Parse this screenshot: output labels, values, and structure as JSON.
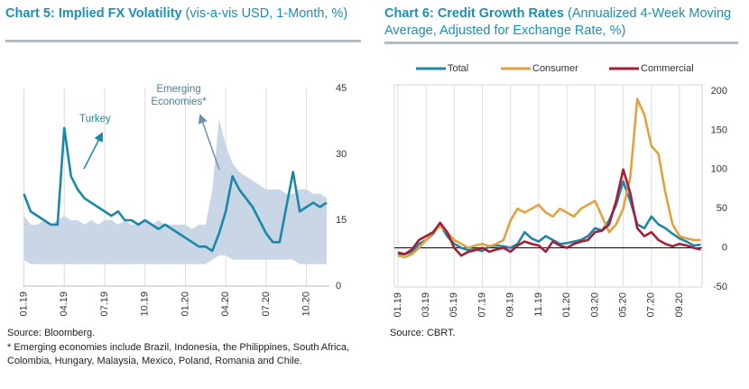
{
  "chart_data": [
    {
      "type": "line",
      "title": "Chart 5: Implied FX Volatility",
      "subtitle": "(vis-a-vis USD, 1-Month, %)",
      "source": "Source: Bloomberg.",
      "note": "* Emerging economies include Brazil, Indonesia, the Philippines, South Africa, Colombia, Hungary, Malaysia, Mexico, Poland, Romania and Chile.",
      "x": [
        0,
        0.5,
        1,
        1.5,
        2,
        2.5,
        3,
        3.5,
        4,
        4.5,
        5,
        5.5,
        6,
        6.5,
        7,
        7.5,
        8,
        8.5,
        9,
        9.5,
        10,
        10.5,
        11,
        11.5,
        12,
        12.5,
        13,
        13.5,
        14,
        14.5,
        15,
        15.5,
        16,
        16.5,
        17,
        17.5,
        18,
        18.5,
        19,
        19.5,
        20,
        20.5,
        21,
        21.5,
        22,
        22.5
      ],
      "series": [
        {
          "name": "Turkey",
          "color": "#1a88a6",
          "values": [
            21,
            17,
            16,
            15,
            14,
            14,
            36,
            25,
            22,
            20,
            19,
            18,
            17,
            16,
            17,
            15,
            15,
            14,
            15,
            14,
            13,
            14,
            13,
            12,
            11,
            10,
            9,
            9,
            8,
            12,
            17,
            25,
            22,
            20,
            18,
            15,
            12,
            10,
            10,
            18,
            26,
            17,
            18,
            19,
            18,
            19
          ]
        },
        {
          "name": "Emerging Economies*",
          "color": "#c8d6e6",
          "style": "range",
          "values": [
            16,
            14,
            14,
            15,
            14,
            15,
            16,
            15,
            15,
            14,
            15,
            14,
            15,
            15,
            14,
            15,
            14,
            14,
            15,
            14,
            15,
            14,
            14,
            14,
            14,
            13,
            14,
            14,
            22,
            38,
            32,
            28,
            26,
            25,
            24,
            23,
            22,
            22,
            22,
            21,
            21,
            22,
            22,
            21,
            21,
            20
          ],
          "low": [
            6,
            5,
            5,
            5,
            5,
            5,
            5,
            5,
            5,
            5,
            5,
            5,
            5,
            5,
            5,
            5,
            5,
            5,
            5,
            5,
            5,
            5,
            5,
            5,
            5,
            5,
            5,
            5,
            6,
            7,
            7,
            6,
            6,
            6,
            6,
            6,
            6,
            6,
            6,
            6,
            6,
            5,
            5,
            5,
            5,
            5
          ]
        }
      ],
      "xlim": [
        -0.1,
        22.7
      ],
      "xticks": [
        {
          "value": 0,
          "label": "01.19"
        },
        {
          "value": 3,
          "label": "04.19"
        },
        {
          "value": 6,
          "label": "07.19"
        },
        {
          "value": 9,
          "label": "10.19"
        },
        {
          "value": 12,
          "label": "01.20"
        },
        {
          "value": 15,
          "label": "04.20"
        },
        {
          "value": 18,
          "label": "07.20"
        },
        {
          "value": 21,
          "label": "10.20"
        }
      ],
      "ylim": [
        0,
        45
      ],
      "yticks": [
        0,
        15,
        30,
        45
      ],
      "grid": "x"
    },
    {
      "type": "line",
      "title": "Chart 6: Credit Growth Rates",
      "subtitle": "(Annualized 4-Week Moving Average, Adjusted for Exchange Rate, %)",
      "source": "Source: CBRT.",
      "legend": "top",
      "x": [
        0,
        0.5,
        1,
        1.5,
        2,
        2.5,
        3,
        3.5,
        4,
        4.5,
        5,
        5.5,
        6,
        6.5,
        7,
        7.5,
        8,
        8.5,
        9,
        9.5,
        10,
        10.5,
        11,
        11.5,
        12,
        12.5,
        13,
        13.5,
        14,
        14.5,
        15,
        15.5,
        16,
        16.5,
        17,
        17.5,
        18,
        18.5,
        19,
        19.5,
        20,
        20.5,
        21,
        21.5
      ],
      "series": [
        {
          "name": "Total",
          "color": "#1f85a8",
          "values": [
            -8,
            -8,
            -5,
            5,
            10,
            18,
            30,
            15,
            5,
            0,
            -3,
            -2,
            -4,
            2,
            3,
            2,
            0,
            5,
            20,
            12,
            8,
            15,
            10,
            5,
            6,
            8,
            10,
            15,
            25,
            22,
            35,
            55,
            85,
            60,
            30,
            25,
            40,
            30,
            25,
            18,
            12,
            8,
            3,
            4
          ]
        },
        {
          "name": "Consumer",
          "color": "#e3a23f",
          "values": [
            -10,
            -12,
            -8,
            0,
            10,
            20,
            28,
            20,
            10,
            5,
            0,
            3,
            5,
            2,
            5,
            10,
            35,
            50,
            45,
            50,
            55,
            45,
            40,
            50,
            45,
            40,
            50,
            55,
            60,
            40,
            20,
            30,
            50,
            90,
            190,
            170,
            130,
            120,
            70,
            30,
            15,
            12,
            10,
            10
          ]
        },
        {
          "name": "Commercial",
          "color": "#a51e36",
          "values": [
            -6,
            -8,
            -2,
            10,
            15,
            20,
            32,
            20,
            0,
            -10,
            -5,
            -3,
            0,
            -5,
            -2,
            0,
            -5,
            3,
            8,
            5,
            3,
            -5,
            8,
            3,
            0,
            5,
            8,
            10,
            20,
            22,
            30,
            60,
            100,
            70,
            25,
            15,
            20,
            10,
            5,
            2,
            5,
            3,
            0,
            -2
          ]
        }
      ],
      "xlim": [
        -0.25,
        21.6
      ],
      "xticks": [
        {
          "value": 0,
          "label": "01.19"
        },
        {
          "value": 2,
          "label": "03.19"
        },
        {
          "value": 4,
          "label": "05.19"
        },
        {
          "value": 6,
          "label": "07.19"
        },
        {
          "value": 8,
          "label": "09.19"
        },
        {
          "value": 10,
          "label": "11.19"
        },
        {
          "value": 12,
          "label": "01.20"
        },
        {
          "value": 14,
          "label": "03.20"
        },
        {
          "value": 16,
          "label": "05.20"
        },
        {
          "value": 18,
          "label": "07.20"
        },
        {
          "value": 20,
          "label": "09.20"
        }
      ],
      "ylim": [
        -50,
        200
      ],
      "yticks": [
        -50,
        0,
        50,
        100,
        150,
        200
      ],
      "grid": "x"
    }
  ]
}
